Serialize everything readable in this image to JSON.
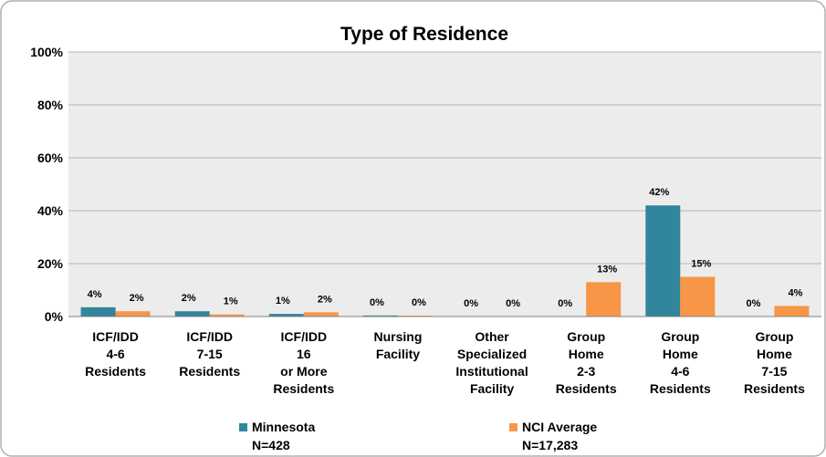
{
  "chart_data": {
    "type": "bar",
    "title": "Type of Residence",
    "categories": [
      "ICF/IDD\n4-6\nResidents",
      "ICF/IDD\n7-15\nResidents",
      "ICF/IDD\n16\nor More\nResidents",
      "Nursing\nFacility",
      "Other\nSpecialized\nInstitutional\nFacility",
      "Group\nHome\n2-3\nResidents",
      "Group\nHome\n4-6\nResidents",
      "Group\nHome\n7-15\nResidents"
    ],
    "series": [
      {
        "name": "Minnesota",
        "n_label": "N=428",
        "color": "#31859c",
        "values": [
          3.5,
          2,
          1,
          0.4,
          0,
          0,
          42,
          0
        ],
        "value_labels": [
          "4%",
          "2%",
          "1%",
          "0%",
          "0%",
          "0%",
          "42%",
          "0%"
        ]
      },
      {
        "name": "NCI Average",
        "n_label": "N=17,283",
        "color": "#f79646",
        "values": [
          2,
          0.8,
          1.6,
          0.3,
          0,
          13,
          15,
          4
        ],
        "value_labels": [
          "2%",
          "1%",
          "2%",
          "0%",
          "0%",
          "13%",
          "15%",
          "4%"
        ]
      }
    ],
    "ylim": [
      0,
      100
    ],
    "yticks": [
      {
        "value": 0,
        "label": "0%"
      },
      {
        "value": 20,
        "label": "20%"
      },
      {
        "value": 40,
        "label": "40%"
      },
      {
        "value": 60,
        "label": "60%"
      },
      {
        "value": 80,
        "label": "80%"
      },
      {
        "value": 100,
        "label": "100%"
      }
    ],
    "grid": true,
    "legend": "bottom"
  }
}
